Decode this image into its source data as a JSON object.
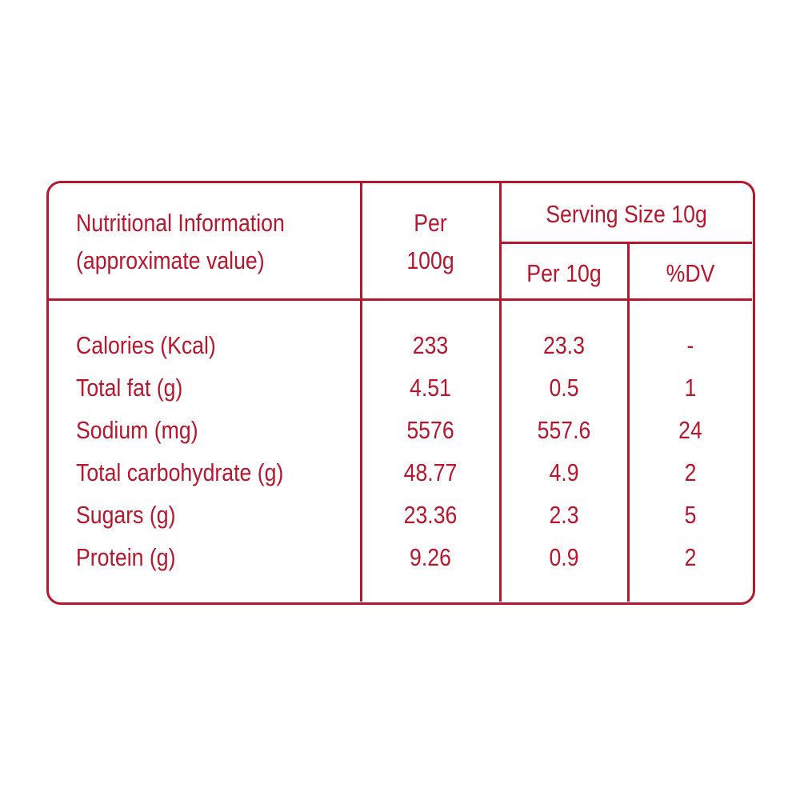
{
  "header": {
    "title_line1": "Nutritional Information",
    "title_line2": "(approximate value)",
    "per100_line1": "Per",
    "per100_line2": "100g",
    "serving_size": "Serving Size 10g",
    "per10": "Per 10g",
    "dv": "%DV"
  },
  "rows": [
    {
      "label": "Calories (Kcal)",
      "per100": "233",
      "per10": "23.3",
      "dv": "-"
    },
    {
      "label": "Total fat (g)",
      "per100": "4.51",
      "per10": "0.5",
      "dv": "1"
    },
    {
      "label": "Sodium (mg)",
      "per100": "5576",
      "per10": "557.6",
      "dv": "24"
    },
    {
      "label": "Total carbohydrate (g)",
      "per100": "48.77",
      "per10": "4.9",
      "dv": "2"
    },
    {
      "label": "Sugars (g)",
      "per100": "23.36",
      "per10": "2.3",
      "dv": "5"
    },
    {
      "label": "Protein (g)",
      "per100": "9.26",
      "per10": "0.9",
      "dv": "2"
    }
  ],
  "colors": {
    "accent": "#b5172e",
    "background": "#ffffff"
  }
}
